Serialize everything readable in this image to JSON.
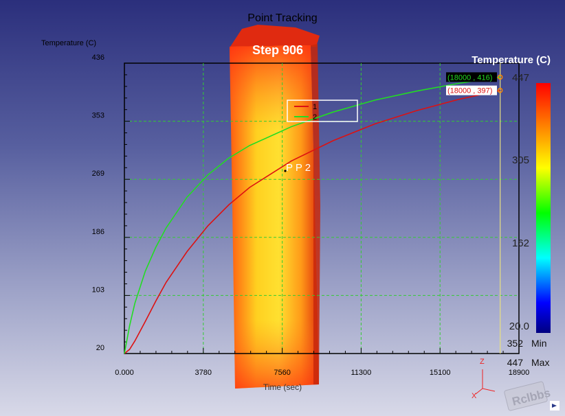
{
  "title": "Point Tracking",
  "step_label": "Step  906",
  "probe_label": "P P 2",
  "colors": {
    "series_1": "#dd1111",
    "series_2": "#22dd22",
    "grid": "#33cc33",
    "axis": "#000000",
    "marker": "#ff8800",
    "time_line": "#e8e080"
  },
  "chart_data": {
    "type": "line",
    "title": "Point Tracking",
    "xlabel": "Time (sec)",
    "ylabel": "Temperature (C)",
    "xlim": [
      0,
      18900
    ],
    "ylim": [
      20,
      436
    ],
    "xticks": [
      "0.000",
      "3780",
      "7560",
      "11300",
      "15100",
      "18900"
    ],
    "yticks": [
      "20",
      "103",
      "186",
      "269",
      "353",
      "436"
    ],
    "grid": true,
    "legend": "top-center",
    "current_time": 18000,
    "series": [
      {
        "name": "1",
        "color": "#dd1111",
        "x": [
          0,
          250,
          500,
          1000,
          1500,
          2000,
          3000,
          4000,
          5000,
          6000,
          8000,
          10000,
          12000,
          14000,
          16000,
          18000
        ],
        "y": [
          20,
          26,
          38,
          66,
          95,
          122,
          166,
          203,
          233,
          258,
          296,
          325,
          349,
          368,
          384,
          397
        ]
      },
      {
        "name": "2",
        "color": "#22dd22",
        "x": [
          0,
          250,
          500,
          1000,
          1500,
          2000,
          3000,
          4000,
          5000,
          6000,
          8000,
          10000,
          12000,
          14000,
          16000,
          18000
        ],
        "y": [
          20,
          60,
          92,
          138,
          172,
          200,
          244,
          276,
          300,
          318,
          345,
          366,
          383,
          396,
          407,
          416
        ]
      }
    ],
    "annotations": [
      {
        "text": "(18000 , 416)",
        "series": 1
      },
      {
        "text": "(18000 , 397)",
        "series": 0
      }
    ]
  },
  "colorbar": {
    "title": "Temperature (C)",
    "labels": [
      "447",
      "305",
      "162",
      "20.0"
    ],
    "min_value": "352",
    "min_label": "Min",
    "max_value": "447",
    "max_label": "Max"
  },
  "axes_triad": {
    "z": "Z",
    "x": "X"
  },
  "watermark": "Rclbbs"
}
